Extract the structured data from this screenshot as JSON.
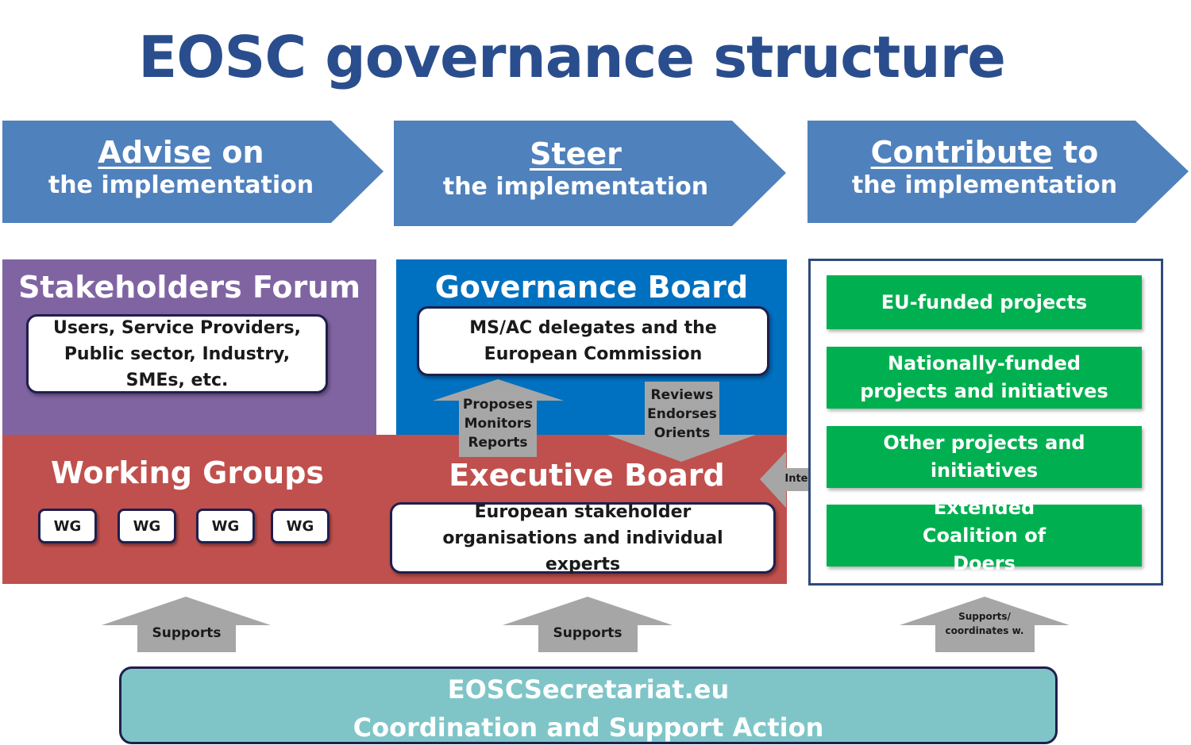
{
  "title": "EOSC governance structure",
  "header_arrows": [
    {
      "line1_underlined": "Advise",
      "line1_rest": " on",
      "line2": "the implementation"
    },
    {
      "line1_underlined": "Steer",
      "line1_rest": "",
      "line2": "the implementation"
    },
    {
      "line1_underlined": "Contribute",
      "line1_rest": " to",
      "line2": "the implementation"
    }
  ],
  "stakeholders_forum": {
    "title": "Stakeholders Forum",
    "members": "Users, Service Providers, Public sector, Industry, SMEs, etc."
  },
  "governance_board": {
    "title": "Governance Board",
    "members": "MS/AC delegates and the European Commission"
  },
  "working_groups": {
    "title": "Working Groups",
    "items": [
      "WG",
      "WG",
      "WG",
      "WG"
    ]
  },
  "executive_board": {
    "title": "Executive Board",
    "members": "European stakeholder organisations and individual experts"
  },
  "up_arrow_labels": [
    "Proposes",
    "Monitors",
    "Reports"
  ],
  "down_arrow_labels": [
    "Reviews",
    "Endorses",
    "Orients"
  ],
  "interact_label": "Interact",
  "contributors": [
    "EU-funded projects",
    "Nationally-funded projects and initiatives",
    "Other projects and initiatives",
    "Extended Coalition of Doers"
  ],
  "support_arrows": [
    "Supports",
    "Supports",
    "Supports/ coordinates w."
  ],
  "secretariat": {
    "line1": "EOSCSecretariat.eu",
    "line2": "Coordination and Support Action"
  },
  "colors": {
    "title": "#2a4e8d",
    "chevron": "#4f81bd",
    "stakeholders": "#8064a2",
    "governance": "#0070c0",
    "executive": "#c0504d",
    "contributor": "#00b050",
    "secretariat": "#7fc5c8",
    "arrow": "#a6a6a6"
  }
}
